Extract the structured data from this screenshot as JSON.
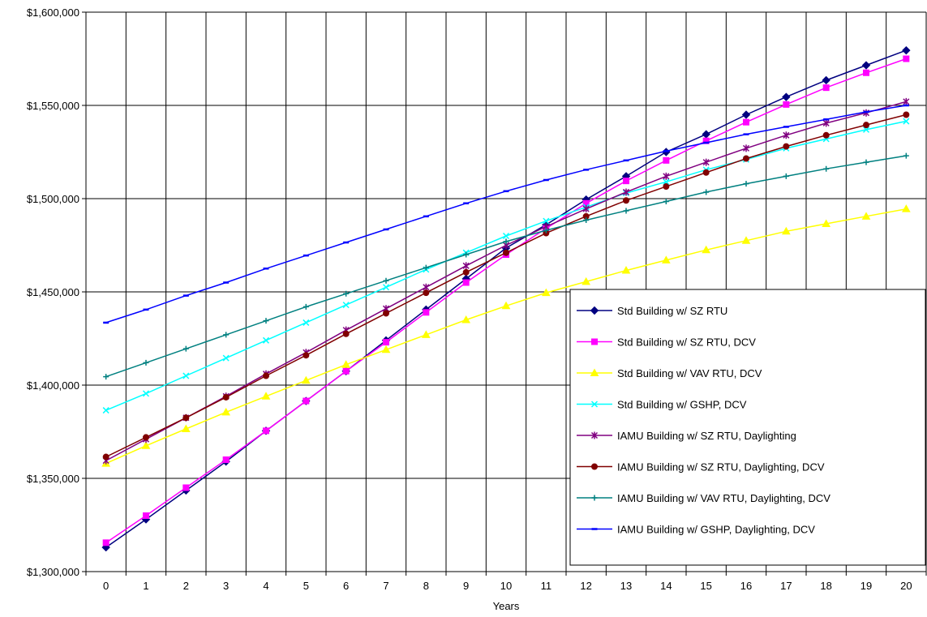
{
  "chart_data": {
    "type": "line",
    "title": "",
    "xlabel": "Years",
    "ylabel": "",
    "x": [
      0,
      1,
      2,
      3,
      4,
      5,
      6,
      7,
      8,
      9,
      10,
      11,
      12,
      13,
      14,
      15,
      16,
      17,
      18,
      19,
      20
    ],
    "x_tick_labels": [
      "0",
      "1",
      "2",
      "3",
      "4",
      "5",
      "6",
      "7",
      "8",
      "9",
      "10",
      "11",
      "12",
      "13",
      "14",
      "15",
      "16",
      "17",
      "18",
      "19",
      "20"
    ],
    "ylim": [
      1300000,
      1600000
    ],
    "y_ticks": [
      1300000,
      1350000,
      1400000,
      1450000,
      1500000,
      1550000,
      1600000
    ],
    "y_tick_labels": [
      "$1,300,000",
      "$1,350,000",
      "$1,400,000",
      "$1,450,000",
      "$1,500,000",
      "$1,550,000",
      "$1,600,000"
    ],
    "grid": true,
    "legend_position": "bottom-right",
    "series": [
      {
        "name": "Std Building w/ SZ RTU",
        "color": "#000080",
        "marker": "diamond",
        "values": [
          1313000,
          1328000,
          1343500,
          1359000,
          1375500,
          1391500,
          1407500,
          1424000,
          1440500,
          1457000,
          1473500,
          1486000,
          1499500,
          1512000,
          1525000,
          1534500,
          1545000,
          1554500,
          1563500,
          1571500,
          1579500
        ]
      },
      {
        "name": "Std Building w/ SZ RTU, DCV",
        "color": "#FF00FF",
        "marker": "square",
        "values": [
          1315500,
          1330000,
          1345000,
          1360000,
          1375500,
          1391500,
          1407500,
          1423000,
          1439000,
          1455000,
          1470000,
          1484000,
          1497500,
          1509500,
          1520500,
          1531000,
          1541000,
          1550500,
          1559500,
          1567500,
          1575000
        ]
      },
      {
        "name": "Std Building w/ VAV RTU, DCV",
        "color": "#FFFF00",
        "marker": "triangle",
        "values": [
          1358000,
          1367500,
          1376500,
          1385500,
          1394000,
          1402500,
          1411000,
          1419000,
          1427000,
          1435000,
          1442500,
          1449500,
          1455500,
          1461500,
          1467000,
          1472500,
          1477500,
          1482500,
          1486500,
          1490500,
          1494500
        ]
      },
      {
        "name": "Std Building w/ GSHP, DCV",
        "color": "#00FFFF",
        "marker": "x",
        "values": [
          1386500,
          1395500,
          1405000,
          1414500,
          1424000,
          1433500,
          1443000,
          1452500,
          1462000,
          1471000,
          1480000,
          1488000,
          1495500,
          1503000,
          1509000,
          1515500,
          1521000,
          1527000,
          1532000,
          1537000,
          1541500
        ]
      },
      {
        "name": "IAMU Building w/ SZ RTU, Daylighting",
        "color": "#800080",
        "marker": "star",
        "values": [
          1359500,
          1371000,
          1382500,
          1394000,
          1406000,
          1417500,
          1429500,
          1441000,
          1452500,
          1464000,
          1475000,
          1485000,
          1494500,
          1503500,
          1512000,
          1519500,
          1527000,
          1534000,
          1540500,
          1546000,
          1552000
        ]
      },
      {
        "name": "IAMU Building w/ SZ RTU, Daylighting, DCV",
        "color": "#800000",
        "marker": "circle",
        "values": [
          1361500,
          1372000,
          1382500,
          1393500,
          1405000,
          1416000,
          1427500,
          1438500,
          1449500,
          1460500,
          1471000,
          1481500,
          1490500,
          1499000,
          1506500,
          1514000,
          1521500,
          1528000,
          1534000,
          1539500,
          1545000
        ]
      },
      {
        "name": "IAMU Building w/ VAV RTU, Daylighting, DCV",
        "color": "#008080",
        "marker": "plus",
        "values": [
          1404500,
          1412000,
          1419500,
          1427000,
          1434500,
          1442000,
          1449000,
          1456000,
          1463000,
          1470000,
          1477000,
          1483000,
          1488500,
          1493500,
          1498500,
          1503500,
          1508000,
          1512000,
          1516000,
          1519500,
          1523000
        ]
      },
      {
        "name": "IAMU Building w/ GSHP, Daylighting, DCV",
        "color": "#0000FF",
        "marker": "dash",
        "values": [
          1433500,
          1440500,
          1448000,
          1455000,
          1462500,
          1469500,
          1476500,
          1483500,
          1490500,
          1497500,
          1504000,
          1510000,
          1515500,
          1520500,
          1525500,
          1530000,
          1534500,
          1538500,
          1542500,
          1546500,
          1550000
        ]
      }
    ]
  }
}
